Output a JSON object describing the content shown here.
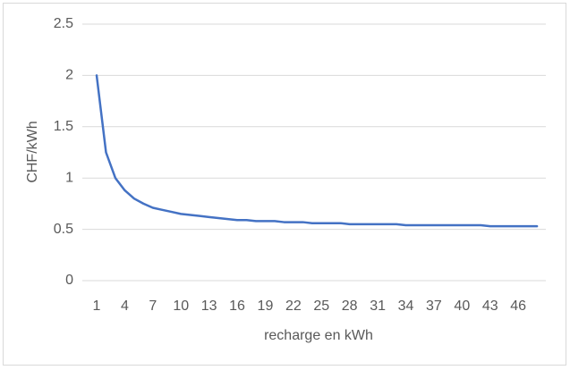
{
  "chart_data": {
    "type": "line",
    "x_label": "recharge en kWh",
    "y_label": "CHF/kWh",
    "categories": [
      "1",
      null,
      null,
      "4",
      null,
      null,
      "7",
      null,
      null,
      "10",
      null,
      null,
      "13",
      null,
      null,
      "16",
      null,
      null,
      "19",
      null,
      null,
      "22",
      null,
      null,
      "25",
      null,
      null,
      "28",
      null,
      null,
      "31",
      null,
      null,
      "34",
      null,
      null,
      "37",
      null,
      null,
      "40",
      null,
      null,
      "43",
      null,
      null,
      "46",
      null,
      null
    ],
    "series": [
      {
        "name": "CHF/kWh",
        "color": "#4472c4",
        "values": [
          2.0,
          1.25,
          1.0,
          0.88,
          0.8,
          0.75,
          0.71,
          0.69,
          0.67,
          0.65,
          0.64,
          0.63,
          0.62,
          0.61,
          0.6,
          0.59,
          0.59,
          0.58,
          0.58,
          0.58,
          0.57,
          0.57,
          0.57,
          0.56,
          0.56,
          0.56,
          0.56,
          0.55,
          0.55,
          0.55,
          0.55,
          0.55,
          0.55,
          0.54,
          0.54,
          0.54,
          0.54,
          0.54,
          0.54,
          0.54,
          0.54,
          0.54,
          0.53,
          0.53,
          0.53,
          0.53,
          0.53,
          0.53
        ]
      }
    ],
    "ylim": [
      0,
      2.5
    ],
    "yticks": [
      0,
      0.5,
      1,
      1.5,
      2,
      2.5
    ],
    "grid": true
  }
}
